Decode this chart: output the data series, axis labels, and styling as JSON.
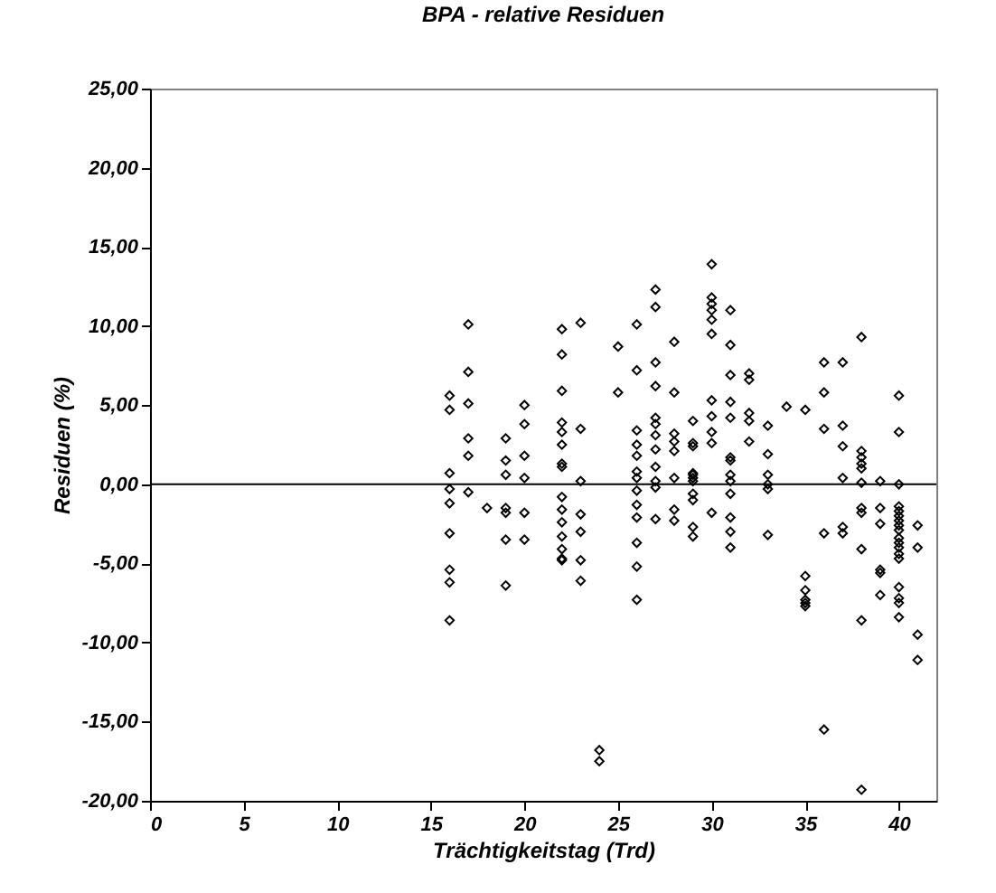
{
  "chart_data": {
    "type": "scatter",
    "title": "BPA - relative Residuen",
    "xlabel": "Trächtigkeitstag (Trd)",
    "ylabel": "Residuen (%)",
    "marker": "diamond",
    "grid": false,
    "xlim": [
      0,
      42
    ],
    "xticks": [
      0,
      5,
      10,
      15,
      20,
      25,
      30,
      35,
      40
    ],
    "ylim": [
      -20,
      25
    ],
    "yticks": [
      {
        "value": -20,
        "label": "-20,00"
      },
      {
        "value": -15,
        "label": "-15,00"
      },
      {
        "value": -10,
        "label": "-10,00"
      },
      {
        "value": -5,
        "label": "-5,00"
      },
      {
        "value": 0,
        "label": "0,00"
      },
      {
        "value": 5,
        "label": "5,00"
      },
      {
        "value": 10,
        "label": "10,00"
      },
      {
        "value": 15,
        "label": "15,00"
      },
      {
        "value": 20,
        "label": "20,00"
      },
      {
        "value": 25,
        "label": "25,00"
      }
    ],
    "ref_lines": [
      {
        "axis": "y",
        "value": 0,
        "color": "#000000"
      }
    ],
    "series": [
      {
        "color": "#000000",
        "x": [
          16,
          16,
          16,
          16,
          16,
          16,
          16,
          16,
          16,
          17,
          17,
          17,
          17,
          17,
          17,
          18,
          19,
          19,
          19,
          19,
          19,
          19,
          19,
          20,
          20,
          20,
          20,
          20,
          20,
          22,
          22,
          22,
          22,
          22,
          22,
          22,
          22,
          22,
          22,
          22,
          22,
          22,
          22,
          22,
          23,
          23,
          23,
          23,
          23,
          23,
          23,
          24,
          24,
          25,
          25,
          26,
          26,
          26,
          26,
          26,
          26,
          26,
          26,
          26,
          26,
          26,
          26,
          26,
          27,
          27,
          27,
          27,
          27,
          27,
          27,
          27,
          27,
          27,
          27,
          27,
          28,
          28,
          28,
          28,
          28,
          28,
          28,
          28,
          29,
          29,
          29,
          29,
          29,
          29,
          29,
          29,
          29,
          29,
          29,
          30,
          30,
          30,
          30,
          30,
          30,
          30,
          30,
          30,
          30,
          30,
          31,
          31,
          31,
          31,
          31,
          31,
          31,
          31,
          31,
          31,
          31,
          31,
          31,
          32,
          32,
          32,
          32,
          32,
          33,
          33,
          33,
          33,
          33,
          33,
          34,
          35,
          35,
          35,
          35,
          35,
          35,
          36,
          36,
          36,
          36,
          36,
          37,
          37,
          37,
          37,
          37,
          37,
          38,
          38,
          38,
          38,
          38,
          38,
          38,
          38,
          38,
          38,
          38,
          39,
          39,
          39,
          39,
          39,
          39,
          40,
          40,
          40,
          40,
          40,
          40,
          40,
          40,
          40,
          40,
          40,
          40,
          40,
          40,
          40,
          40,
          40,
          40,
          41,
          41,
          41,
          41
        ],
        "values": [
          5.6,
          4.7,
          0.7,
          -0.3,
          -1.2,
          -3.1,
          -5.4,
          -6.2,
          -8.6,
          10.1,
          7.1,
          5.1,
          2.9,
          1.8,
          -0.5,
          -1.5,
          2.9,
          1.5,
          0.6,
          -1.5,
          -1.8,
          -3.5,
          -6.4,
          5.0,
          3.8,
          1.8,
          0.4,
          -1.8,
          -3.5,
          9.8,
          8.2,
          5.9,
          3.9,
          3.3,
          2.5,
          1.3,
          1.1,
          -0.8,
          -1.6,
          -2.4,
          -3.3,
          -4.1,
          -4.7,
          -4.8,
          10.2,
          3.5,
          0.2,
          -1.9,
          -3.0,
          -4.8,
          -6.1,
          -16.8,
          -17.5,
          8.7,
          5.8,
          10.1,
          7.2,
          3.4,
          2.5,
          1.8,
          0.8,
          0.4,
          -0.4,
          -1.3,
          -2.1,
          -3.7,
          -5.2,
          -7.3,
          12.3,
          11.2,
          7.7,
          6.2,
          4.2,
          3.8,
          3.1,
          2.2,
          1.1,
          0.2,
          -0.2,
          -2.2,
          9.0,
          5.8,
          3.2,
          2.7,
          2.1,
          0.4,
          -1.6,
          -2.3,
          4.0,
          2.6,
          2.4,
          0.7,
          0.6,
          0.4,
          0.2,
          -0.6,
          -1.0,
          -2.7,
          -3.3,
          13.9,
          11.8,
          11.4,
          11.0,
          10.4,
          9.5,
          5.3,
          4.3,
          3.3,
          2.6,
          -1.8,
          11.0,
          8.8,
          6.9,
          5.2,
          4.2,
          1.7,
          1.5,
          0.6,
          0.2,
          -0.6,
          -2.1,
          -3.0,
          -4.0,
          7.0,
          6.6,
          4.5,
          4.0,
          2.7,
          3.7,
          1.9,
          0.6,
          0.0,
          -0.3,
          -3.2,
          4.9,
          4.7,
          -5.8,
          -6.7,
          -7.3,
          -7.5,
          -7.7,
          7.7,
          5.8,
          3.5,
          -3.1,
          -15.5,
          7.7,
          3.7,
          2.4,
          0.4,
          -2.7,
          -3.1,
          9.3,
          2.1,
          1.7,
          1.3,
          1.0,
          0.1,
          -1.5,
          -1.8,
          -4.1,
          -8.6,
          -19.3,
          0.2,
          -1.5,
          -2.5,
          -5.4,
          -5.6,
          -7.0,
          5.6,
          3.3,
          0.0,
          -1.4,
          -1.7,
          -2.0,
          -2.3,
          -2.6,
          -2.9,
          -3.4,
          -3.7,
          -4.0,
          -4.4,
          -4.7,
          -6.5,
          -7.2,
          -7.5,
          -8.4,
          -2.6,
          -4.0,
          -9.5,
          -11.1
        ]
      }
    ]
  }
}
